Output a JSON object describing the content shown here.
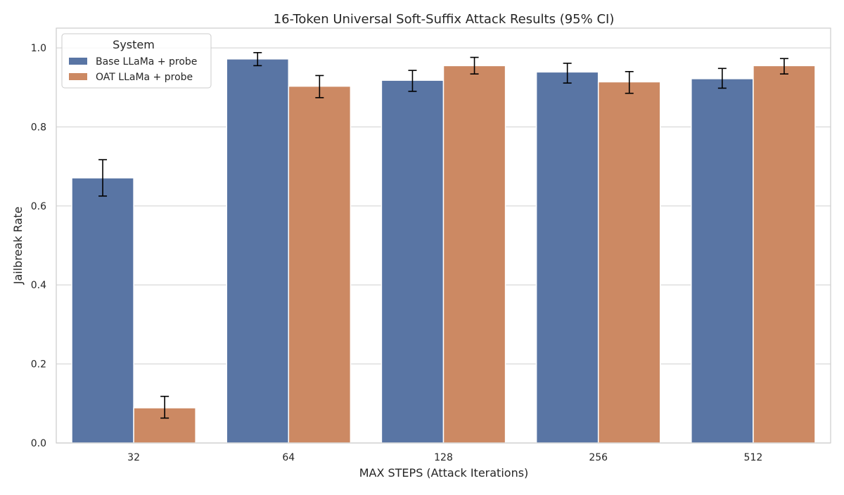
{
  "chart_data": {
    "type": "bar",
    "title": "16-Token Universal Soft-Suffix Attack Results (95% CI)",
    "xlabel": "MAX STEPS (Attack Iterations)",
    "ylabel": "Jailbreak Rate",
    "ylim": [
      0,
      1.05
    ],
    "yticks": [
      "0.0",
      "0.2",
      "0.4",
      "0.6",
      "0.8",
      "1.0"
    ],
    "categories": [
      "32",
      "64",
      "128",
      "256",
      "512"
    ],
    "grid": true,
    "legend": {
      "title": "System",
      "placement": "top-left"
    },
    "series": [
      {
        "name": "Base LLaMa + probe",
        "color": "#5975a4",
        "values": [
          0.671,
          0.972,
          0.918,
          0.939,
          0.922
        ],
        "ci_low": [
          0.625,
          0.955,
          0.89,
          0.911,
          0.898
        ],
        "ci_high": [
          0.717,
          0.988,
          0.943,
          0.961,
          0.948
        ]
      },
      {
        "name": "OAT LLaMa + probe",
        "color": "#cc8963",
        "values": [
          0.089,
          0.903,
          0.955,
          0.914,
          0.955
        ],
        "ci_low": [
          0.063,
          0.874,
          0.934,
          0.885,
          0.934
        ],
        "ci_high": [
          0.118,
          0.93,
          0.976,
          0.94,
          0.973
        ]
      }
    ]
  }
}
